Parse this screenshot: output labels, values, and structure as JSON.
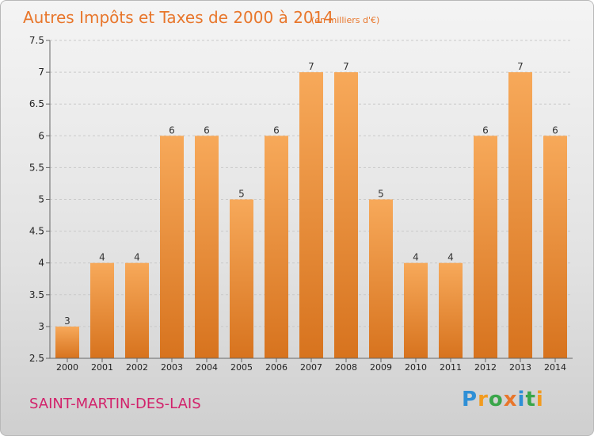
{
  "chart_data": {
    "type": "bar",
    "title": "Autres Impôts et Taxes de 2000 à 2014",
    "unit_note": "(en milliers d'€)",
    "categories": [
      "2000",
      "2001",
      "2002",
      "2003",
      "2004",
      "2005",
      "2006",
      "2007",
      "2008",
      "2009",
      "2010",
      "2011",
      "2012",
      "2013",
      "2014"
    ],
    "values": [
      3,
      4,
      4,
      6,
      6,
      5,
      6,
      7,
      7,
      5,
      4,
      4,
      6,
      7,
      6
    ],
    "data_labels": [
      "3",
      "4",
      "4",
      "6",
      "6",
      "5",
      "6",
      "7",
      "7",
      "5",
      "4",
      "4",
      "6",
      "7",
      "6"
    ],
    "ylim": [
      2.5,
      7.5
    ],
    "yticks": [
      "2.5",
      "3",
      "3.5",
      "4",
      "4.5",
      "5",
      "5.5",
      "6",
      "6.5",
      "7",
      "7.5"
    ],
    "grid": true,
    "bar_color_top": "#f7a95a",
    "bar_color_bottom": "#d7731e"
  },
  "commune": "SAINT-MARTIN-DES-LAIS",
  "logo": {
    "text": "Proxiti",
    "letters": [
      {
        "char": "P",
        "color": "#2e8fd6"
      },
      {
        "char": "r",
        "color": "#f29b1f"
      },
      {
        "char": "o",
        "color": "#3aa64a"
      },
      {
        "char": "x",
        "color": "#e8762b"
      },
      {
        "char": "i",
        "color": "#2e8fd6"
      },
      {
        "char": "t",
        "color": "#3aa64a"
      },
      {
        "char": "i",
        "color": "#f29b1f"
      }
    ]
  }
}
